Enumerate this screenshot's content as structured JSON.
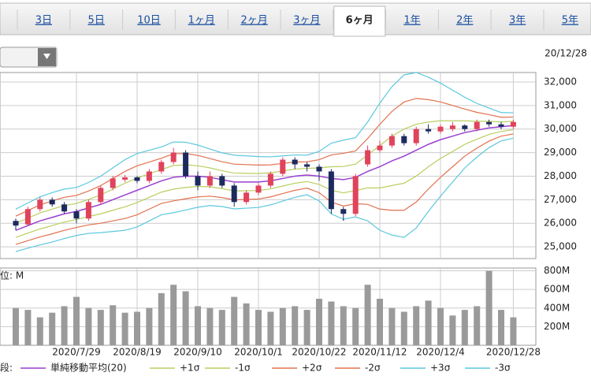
{
  "tabs": {
    "items": [
      "3日",
      "5日",
      "10日",
      "1ヶ月",
      "2ヶ月",
      "3ヶ月",
      "6ヶ月",
      "1年",
      "2年",
      "3年",
      "5年"
    ],
    "selected": 6
  },
  "date_label": "20/12/28",
  "chart_data": {
    "type": "candlestick",
    "categories": [
      null,
      null,
      null,
      null,
      null,
      "2020/7/29",
      null,
      null,
      null,
      null,
      "2020/8/19",
      null,
      null,
      null,
      null,
      "2020/9/10",
      null,
      null,
      null,
      null,
      "2020/10/1",
      null,
      null,
      null,
      null,
      "2020/10/22",
      null,
      null,
      null,
      null,
      "2020/11/12",
      null,
      null,
      null,
      null,
      "2020/12/4",
      null,
      null,
      null,
      null,
      null,
      "2020/12/28"
    ],
    "open": [
      26100,
      25950,
      26600,
      27000,
      26800,
      26500,
      26200,
      26900,
      27500,
      27850,
      27950,
      27800,
      28200,
      28600,
      29000,
      28000,
      27600,
      28000,
      27600,
      26900,
      27300,
      27600,
      28100,
      28700,
      28500,
      28400,
      28200,
      26600,
      26400,
      28500,
      29100,
      29300,
      29700,
      29400,
      30000,
      29900,
      30000,
      30150,
      30000,
      30300,
      30200,
      30100
    ],
    "high": [
      26200,
      26700,
      27100,
      27100,
      26900,
      26600,
      27000,
      27600,
      28000,
      28050,
      28000,
      28300,
      28700,
      29200,
      29100,
      28200,
      28200,
      28100,
      27700,
      27400,
      27700,
      28200,
      28800,
      28800,
      28600,
      28500,
      28300,
      26700,
      28100,
      29300,
      29500,
      29800,
      29800,
      30100,
      30200,
      30200,
      30300,
      30200,
      30400,
      30400,
      30300,
      30400
    ],
    "low": [
      25700,
      25900,
      26500,
      26700,
      26400,
      26000,
      26100,
      26800,
      27400,
      27750,
      27700,
      27700,
      28100,
      28500,
      27900,
      27400,
      27500,
      27500,
      26700,
      26800,
      27200,
      27500,
      28000,
      28300,
      28200,
      27800,
      26400,
      26100,
      26300,
      28400,
      29000,
      29200,
      29300,
      29300,
      29800,
      29800,
      29900,
      29900,
      29900,
      30100,
      30000,
      30000
    ],
    "close": [
      25900,
      26600,
      27000,
      26800,
      26500,
      26200,
      26900,
      27500,
      27900,
      27950,
      27800,
      28200,
      28600,
      29000,
      28000,
      27600,
      28000,
      27600,
      26900,
      27300,
      27600,
      28100,
      28700,
      28500,
      28400,
      28200,
      26600,
      26400,
      28000,
      29100,
      29300,
      29700,
      29400,
      30000,
      29900,
      30100,
      30150,
      30000,
      30300,
      30200,
      30100,
      30300
    ],
    "up_color": "#e0435b",
    "down_color": "#1c2a5e",
    "series": [
      {
        "name": "単純移動平均(20)",
        "color": "#9b3fd0",
        "values": [
          25700,
          25900,
          26100,
          26250,
          26400,
          26500,
          26650,
          26800,
          27000,
          27200,
          27400,
          27600,
          27800,
          27950,
          28000,
          28000,
          27950,
          27850,
          27750,
          27750,
          27750,
          27800,
          27900,
          28000,
          28050,
          28000,
          27900,
          27850,
          27950,
          28200,
          28400,
          28650,
          28850,
          29100,
          29350,
          29550,
          29700,
          29850,
          29950,
          30050,
          30100,
          30150
        ]
      },
      {
        "name": "+1σ",
        "color": "#b8cf5e",
        "values": [
          26000,
          26220,
          26440,
          26600,
          26750,
          26840,
          27010,
          27200,
          27450,
          27700,
          27920,
          28100,
          28280,
          28450,
          28480,
          28440,
          28350,
          28230,
          28130,
          28120,
          28110,
          28140,
          28220,
          28300,
          28330,
          28350,
          28400,
          28410,
          28510,
          28900,
          29300,
          29700,
          30000,
          30200,
          30300,
          30350,
          30350,
          30350,
          30330,
          30330,
          30300,
          30330
        ]
      },
      {
        "name": "-1σ",
        "color": "#b8cf5e",
        "values": [
          25400,
          25580,
          25760,
          25900,
          26050,
          26160,
          26290,
          26400,
          26550,
          26700,
          26880,
          27100,
          27320,
          27450,
          27520,
          27560,
          27550,
          27470,
          27370,
          27380,
          27390,
          27460,
          27580,
          27700,
          27770,
          27650,
          27400,
          27290,
          27390,
          27500,
          27500,
          27600,
          27700,
          28000,
          28400,
          28750,
          29050,
          29350,
          29570,
          29770,
          29900,
          29970
        ]
      },
      {
        "name": "+2σ",
        "color": "#e2714f",
        "values": [
          26300,
          26540,
          26780,
          26950,
          27100,
          27180,
          27370,
          27600,
          27900,
          28200,
          28440,
          28600,
          28760,
          28950,
          28960,
          28880,
          28750,
          28610,
          28510,
          28490,
          28470,
          28480,
          28540,
          28600,
          28610,
          28700,
          28900,
          28970,
          29070,
          29600,
          30200,
          30750,
          31150,
          31300,
          31250,
          31150,
          31000,
          30850,
          30710,
          30610,
          30500,
          30510
        ]
      },
      {
        "name": "-2σ",
        "color": "#e2714f",
        "values": [
          25100,
          25260,
          25420,
          25550,
          25700,
          25820,
          25930,
          26000,
          26100,
          26200,
          26360,
          26600,
          26840,
          26950,
          27040,
          27120,
          27150,
          27090,
          26990,
          27010,
          27030,
          27120,
          27260,
          27400,
          27490,
          27300,
          26900,
          26730,
          26830,
          26800,
          26600,
          26550,
          26550,
          26900,
          27450,
          27950,
          28400,
          28850,
          29190,
          29490,
          29700,
          29790
        ]
      },
      {
        "name": "+3σ",
        "color": "#5cc8dd",
        "values": [
          26600,
          26860,
          27120,
          27300,
          27450,
          27520,
          27730,
          28000,
          28350,
          28700,
          28960,
          29100,
          29240,
          29450,
          29440,
          29320,
          29150,
          28990,
          28890,
          28860,
          28830,
          28820,
          28860,
          28900,
          28890,
          29050,
          29400,
          29530,
          29630,
          30300,
          31100,
          31800,
          32300,
          32400,
          32200,
          31950,
          31650,
          31350,
          31090,
          30890,
          30700,
          30690
        ]
      },
      {
        "name": "-3σ",
        "color": "#5cc8dd",
        "values": [
          24800,
          24940,
          25080,
          25200,
          25350,
          25480,
          25570,
          25600,
          25650,
          25700,
          25840,
          26100,
          26360,
          26450,
          26560,
          26680,
          26750,
          26710,
          26610,
          26640,
          26670,
          26780,
          26940,
          27100,
          27210,
          26950,
          26400,
          26170,
          26270,
          26100,
          25700,
          25500,
          25400,
          25800,
          26500,
          27150,
          27750,
          28350,
          28810,
          29210,
          29500,
          29610
        ]
      }
    ],
    "ylim": [
      24500,
      32400
    ],
    "yticks": [
      {
        "value": 25000,
        "label": "25,000"
      },
      {
        "value": 26000,
        "label": "26,000"
      },
      {
        "value": 27000,
        "label": "27,000"
      },
      {
        "value": 28000,
        "label": "28,000"
      },
      {
        "value": 29000,
        "label": "29,000"
      },
      {
        "value": 30000,
        "label": "30,000"
      },
      {
        "value": 31000,
        "label": "31,000"
      },
      {
        "value": 32000,
        "label": "32,000"
      }
    ],
    "grid": true,
    "volume": {
      "unit_label": "位: M",
      "color": "#9a9a9a",
      "values": [
        400,
        380,
        300,
        350,
        420,
        520,
        400,
        380,
        430,
        350,
        360,
        400,
        560,
        650,
        580,
        420,
        400,
        380,
        520,
        450,
        380,
        360,
        400,
        420,
        380,
        500,
        470,
        420,
        400,
        650,
        500,
        400,
        360,
        420,
        480,
        400,
        320,
        380,
        420,
        800,
        380,
        300
      ],
      "ylim": [
        0,
        830
      ],
      "yticks": [
        {
          "value": 200,
          "label": "200M"
        },
        {
          "value": 400,
          "label": "400M"
        },
        {
          "value": 600,
          "label": "600M"
        },
        {
          "value": 800,
          "label": "800M"
        }
      ]
    },
    "legend_prefix": "段:"
  }
}
